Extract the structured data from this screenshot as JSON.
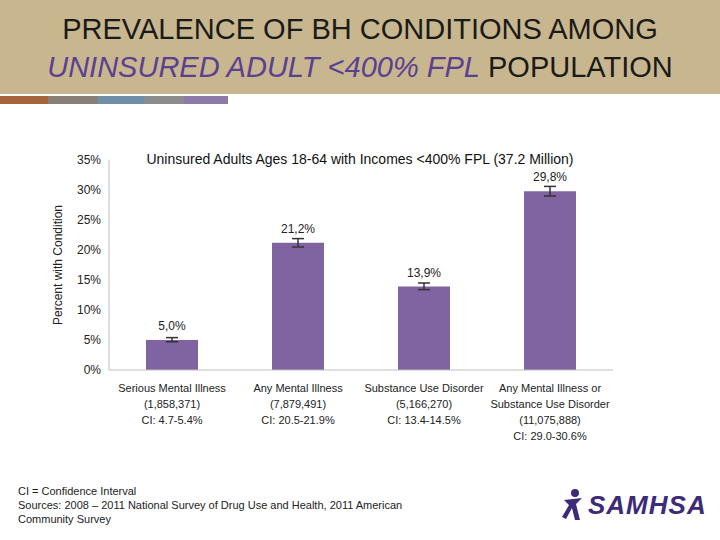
{
  "chart_data": {
    "type": "bar",
    "title": "PREVALENCE OF BH CONDITIONS AMONG",
    "title_emphasis": "UNINSURED ADULT <400% FPL",
    "title_end": "POPULATION",
    "subtitle": "Uninsured Adults Ages 18-64 with Incomes <400% FPL (37.2 Million)",
    "ylabel": "Percent with Condition",
    "categories": [
      "Serious Mental Illness",
      "Any Mental Illness",
      "Substance Use Disorder",
      "Any Mental Illness or Substance Use Disorder"
    ],
    "category_notes": [
      [
        "(1,858,371)",
        "CI: 4.7-5.4%"
      ],
      [
        "(7,879,491)",
        "CI: 20.5-21.9%"
      ],
      [
        "(5,166,270)",
        "CI: 13.4-14.5%"
      ],
      [
        "(11,075,888)",
        "CI: 29.0-30.6%"
      ]
    ],
    "values": [
      5.0,
      21.2,
      13.9,
      29.8
    ],
    "value_labels": [
      "5,0%",
      "21,2%",
      "13,9%",
      "29,8%"
    ],
    "ci_low": [
      4.7,
      20.5,
      13.4,
      29.0
    ],
    "ci_high": [
      5.4,
      21.9,
      14.5,
      30.6
    ],
    "color": "#8064a2",
    "ylim": [
      0,
      35
    ],
    "yticks": [
      {
        "value": 0,
        "label": "0%"
      },
      {
        "value": 5,
        "label": "5%"
      },
      {
        "value": 10,
        "label": "10%"
      },
      {
        "value": 15,
        "label": "15%"
      },
      {
        "value": 20,
        "label": "20%"
      },
      {
        "value": 25,
        "label": "25%"
      },
      {
        "value": 30,
        "label": "30%"
      },
      {
        "value": 35,
        "label": "35%"
      }
    ],
    "grid": false,
    "data_labels": true,
    "footnote": "CI = Confidence Interval",
    "source": "Sources: 2008 – 2011 National Survey of Drug Use and Health, 2011 American Community Survey",
    "logo": "SAMHSA"
  }
}
